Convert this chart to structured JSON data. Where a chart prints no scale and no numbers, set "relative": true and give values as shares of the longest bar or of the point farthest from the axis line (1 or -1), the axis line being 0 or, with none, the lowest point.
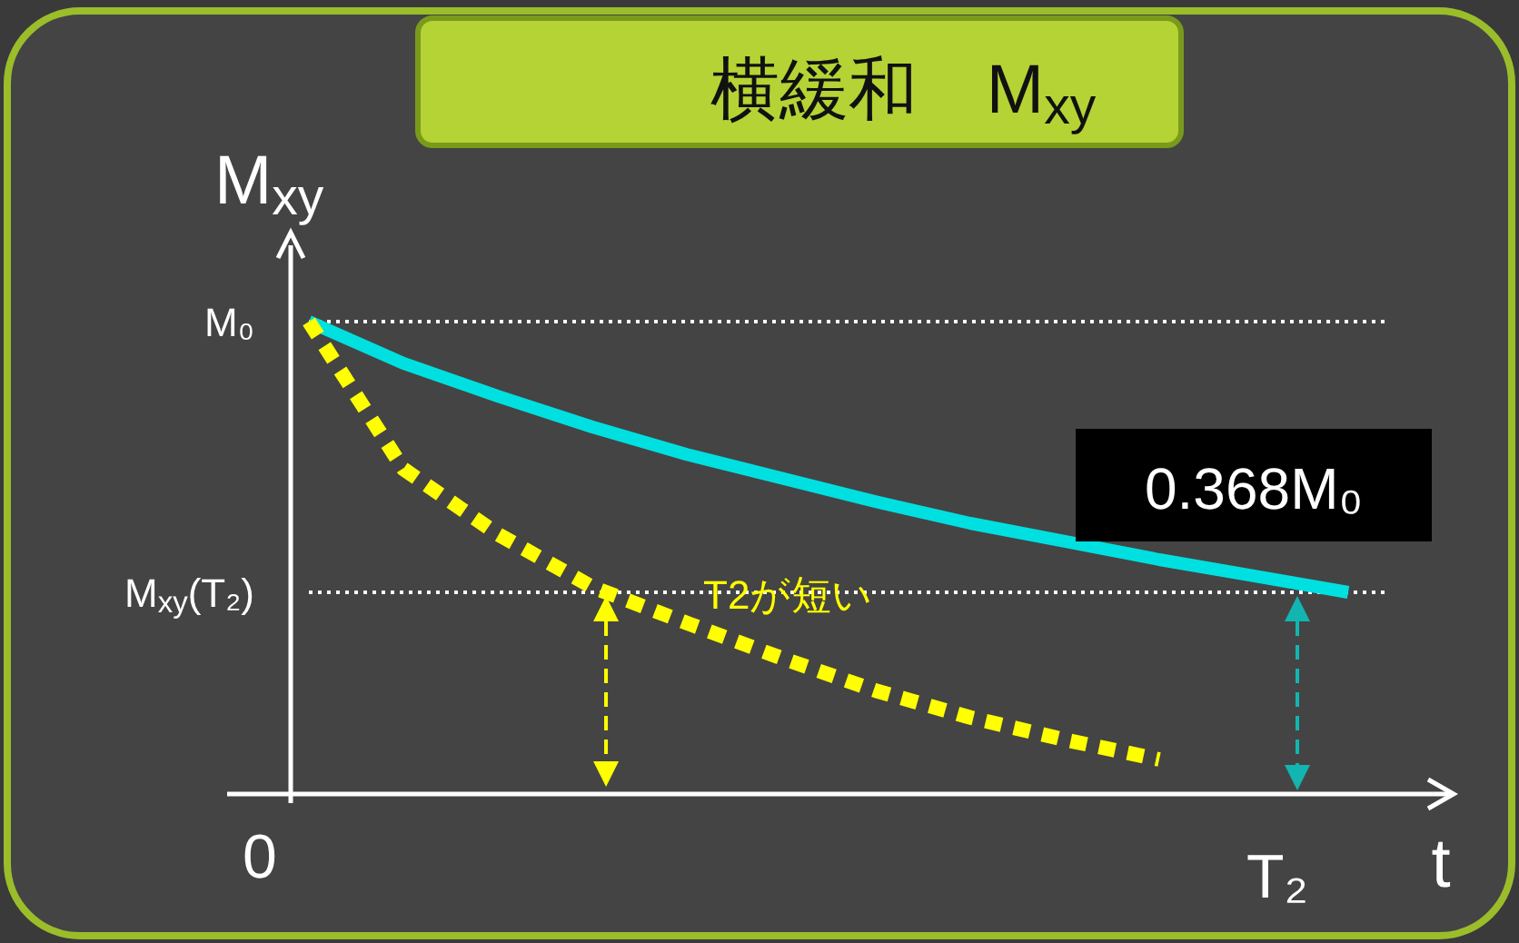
{
  "chart_data": {
    "type": "line",
    "title": "横緩和　M$_{xy}$",
    "ylabel": "M$_{xy}$",
    "xlabel": "t",
    "relative": true,
    "categories": [
      null,
      null,
      null,
      null,
      null,
      null,
      null,
      null,
      null,
      null,
      null,
      null
    ],
    "series": [
      {
        "color": "#00e0e0",
        "line_style": "solid",
        "values": [
          1,
          0.912,
          0.842,
          0.777,
          0.719,
          0.669,
          0.619,
          0.573,
          0.535,
          0.496,
          0.462,
          0.427
        ]
      },
      {
        "color": "#ffff00",
        "line_style": "dotted",
        "values": [
          1,
          0.688,
          0.55,
          0.438,
          0.362,
          0.288,
          0.219,
          0.162,
          0.115,
          0.073,
          null,
          null
        ]
      }
    ],
    "ref_lines": [
      {
        "axis": "y",
        "value": 1,
        "label": "M₀",
        "color": "#ffffff",
        "line_style": "dotted"
      },
      {
        "axis": "y",
        "value": 0.427,
        "label": "M$_{xy}$(T₂)",
        "color": "#ffffff",
        "line_style": "dotted"
      }
    ],
    "annotations": [
      "0.368M₀",
      "T2が短い",
      "0",
      "T₂"
    ]
  }
}
